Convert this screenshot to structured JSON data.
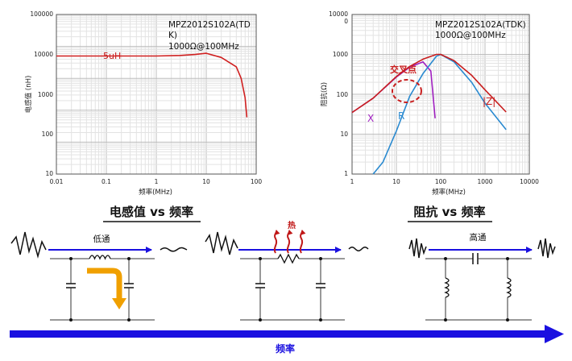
{
  "left_chart": {
    "ylabel": "电感值 (nH)",
    "xlabel": "频率(MHz)",
    "yticks": [
      "10000",
      "1000",
      "100",
      "10"
    ],
    "ytick_top": "100000",
    "xticks": [
      "0.01",
      "0.1",
      "1",
      "10",
      "100"
    ],
    "note1": "MPZ2012S102A(TD",
    "note2": "K)",
    "note3": "1000Ω@100MHz",
    "series_label": "5uH",
    "colors": {
      "inductance": "#d02020"
    }
  },
  "right_chart": {
    "ylabel": "阻抗(Ω)",
    "xlabel": "频率(MHz)",
    "ytick_top_a": "10000",
    "ytick_top_b": "0",
    "yticks": [
      "1000",
      "100",
      "10",
      "1"
    ],
    "xticks": [
      "1",
      "10",
      "100",
      "1000",
      "10000"
    ],
    "note1": "MPZ2012S102A(TDK)",
    "note2": "1000Ω@100MHz",
    "cross_label": "交叉点",
    "label_x": "X",
    "label_r": "R",
    "label_z": "|Z|",
    "colors": {
      "X": "#a020c0",
      "R": "#2a8ad0",
      "Z": "#c81e1e"
    }
  },
  "headings": {
    "left": "电感值 vs 频率",
    "right": "阻抗 vs 频率"
  },
  "circuits": {
    "low_pass": "低通",
    "heat": "热",
    "high_pass": "高通"
  },
  "bottom_arrow": {
    "label": "频率",
    "color": "#1a10e0"
  },
  "chart_data": [
    {
      "type": "line",
      "title": "",
      "xlabel": "频率(MHz)",
      "ylabel": "电感值 (nH)",
      "x_scale": "log",
      "y_scale": "log",
      "xlim": [
        0.01,
        100
      ],
      "ylim": [
        1,
        100000
      ],
      "series": [
        {
          "name": "5uH",
          "x": [
            0.01,
            0.1,
            1,
            3,
            6,
            10,
            20,
            40,
            50,
            60,
            65
          ],
          "y": [
            5000,
            5000,
            5000,
            5200,
            5600,
            6100,
            4500,
            2300,
            1000,
            250,
            60
          ]
        }
      ]
    },
    {
      "type": "line",
      "title": "",
      "xlabel": "频率(MHz)",
      "ylabel": "阻抗(Ω)",
      "x_scale": "log",
      "y_scale": "log",
      "xlim": [
        1,
        10000
      ],
      "ylim": [
        1,
        10000
      ],
      "series": [
        {
          "name": "X",
          "x": [
            1,
            3,
            10,
            20,
            40,
            60,
            75
          ],
          "y": [
            35,
            80,
            270,
            480,
            650,
            380,
            25
          ]
        },
        {
          "name": "R",
          "x": [
            3,
            5,
            10,
            20,
            40,
            80,
            100,
            200,
            500,
            1000,
            3000
          ],
          "y": [
            1,
            2,
            12,
            90,
            330,
            900,
            1000,
            650,
            200,
            60,
            13
          ]
        },
        {
          "name": "|Z|",
          "x": [
            1,
            3,
            10,
            20,
            40,
            80,
            100,
            200,
            500,
            1000,
            3000
          ],
          "y": [
            35,
            80,
            280,
            500,
            760,
            1000,
            1000,
            700,
            300,
            130,
            36
          ]
        }
      ]
    }
  ]
}
